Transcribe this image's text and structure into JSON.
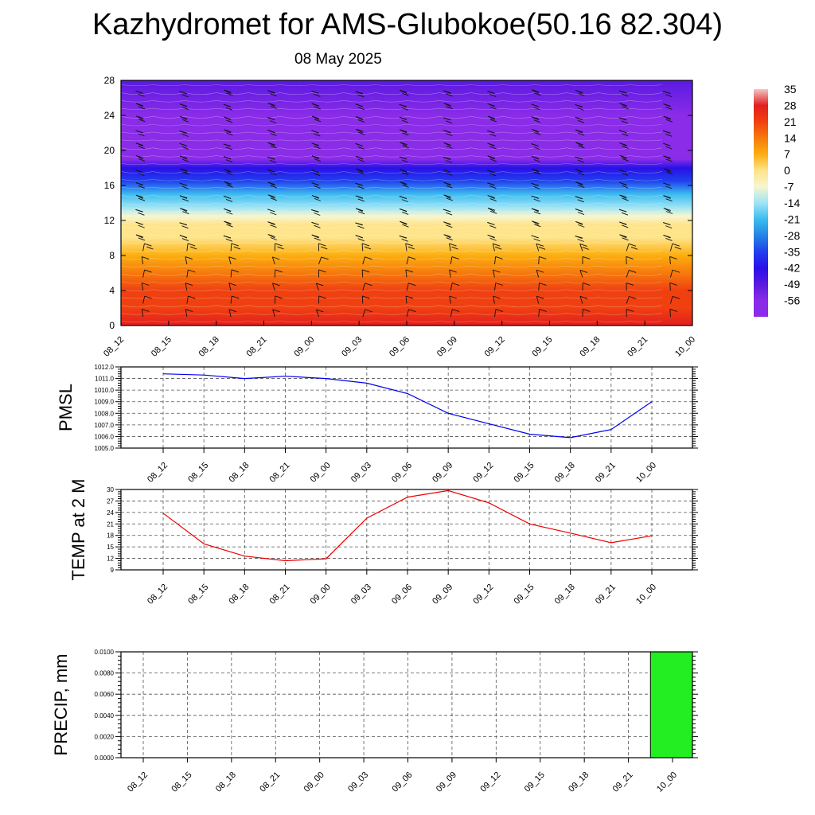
{
  "title": "Kazhydromet for AMS-Glubokoe(50.16 82.304)",
  "subtitle": "08 May 2025",
  "chart_data": [
    {
      "type": "heatmap",
      "y_ticks": [
        "0",
        "4",
        "8",
        "12",
        "16",
        "20",
        "24",
        "28"
      ],
      "x_ticks": [
        "08_12",
        "08_15",
        "08_18",
        "08_21",
        "09_00",
        "09_03",
        "09_06",
        "09_09",
        "09_12",
        "09_15",
        "09_18",
        "09_21",
        "10_00"
      ],
      "ylim": [
        0,
        28
      ],
      "colorbar_labels": [
        "35",
        "28",
        "21",
        "14",
        "7",
        "0",
        "-7",
        "-14",
        "-21",
        "-28",
        "-35",
        "-42",
        "-49",
        "-56"
      ],
      "colorbar_range": [
        -63,
        35
      ],
      "colorbar_colors": [
        "#f4c4c4",
        "#e21e1e",
        "#f04010",
        "#f67a0c",
        "#fcae0e",
        "#fee48a",
        "#f6f6d0",
        "#9ee4f6",
        "#3cbcf0",
        "#2484e4",
        "#2040ee",
        "#2a10e8",
        "#5a1ae0",
        "#8a2ce8"
      ],
      "colorbar_stops": [
        35,
        28,
        21,
        14,
        7,
        0,
        -7,
        -14,
        -21,
        -28,
        -35,
        -42,
        -49,
        -56
      ],
      "profile": {
        "heights": [
          0,
          2,
          4,
          6,
          8,
          10,
          11.5,
          12.5,
          13.5,
          15,
          16.5,
          18,
          19,
          20,
          22,
          24,
          28
        ],
        "temps": [
          28,
          24,
          20,
          15,
          9,
          3,
          0,
          -10,
          -16,
          -24,
          -32,
          -45,
          -55,
          -58,
          -56,
          -53,
          -50
        ]
      },
      "wind_barbs": true
    },
    {
      "type": "line",
      "ylabel": "PMSL",
      "categories": [
        "08_12",
        "08_15",
        "08_18",
        "08_21",
        "09_00",
        "09_03",
        "09_06",
        "09_09",
        "09_12",
        "09_15",
        "09_18",
        "09_21",
        "10_00"
      ],
      "y_ticks": [
        "1005.0",
        "1006.0",
        "1007.0",
        "1008.0",
        "1009.0",
        "1010.0",
        "1011.0",
        "1012.0"
      ],
      "ylim": [
        1005,
        1012
      ],
      "series": [
        {
          "color": "#0000ee",
          "values": [
            1011.4,
            1011.3,
            1011.0,
            1011.2,
            1011.0,
            1010.6,
            1009.7,
            1008.0,
            1007.1,
            1006.2,
            1005.9,
            1006.6,
            1009.0
          ]
        }
      ],
      "grid": true
    },
    {
      "type": "line",
      "ylabel": "TEMP at 2 M",
      "categories": [
        "08_12",
        "08_15",
        "08_18",
        "08_21",
        "09_00",
        "09_03",
        "09_06",
        "09_09",
        "09_12",
        "09_15",
        "09_18",
        "09_21",
        "10_00"
      ],
      "y_ticks": [
        "9",
        "12",
        "15",
        "18",
        "21",
        "24",
        "27",
        "30"
      ],
      "ylim": [
        9,
        30
      ],
      "series": [
        {
          "color": "#ee0000",
          "values": [
            23.8,
            15.8,
            12.6,
            11.4,
            11.9,
            22.5,
            28.0,
            29.7,
            26.5,
            21.0,
            18.6,
            16.1,
            17.9
          ]
        }
      ],
      "grid": true
    },
    {
      "type": "bar",
      "ylabel": "PRECIP, mm",
      "categories": [
        "08_12",
        "08_15",
        "08_18",
        "08_21",
        "09_00",
        "09_03",
        "09_06",
        "09_09",
        "09_12",
        "09_15",
        "09_18",
        "09_21",
        "10_00"
      ],
      "y_ticks": [
        "0.0000",
        "0.0020",
        "0.0040",
        "0.0060",
        "0.0080",
        "0.0100"
      ],
      "ylim": [
        0,
        0.01
      ],
      "values": [
        0,
        0,
        0,
        0,
        0,
        0,
        0,
        0,
        0,
        0,
        0,
        0,
        0.01
      ],
      "bar_color": "#22ee22",
      "grid": true
    }
  ]
}
